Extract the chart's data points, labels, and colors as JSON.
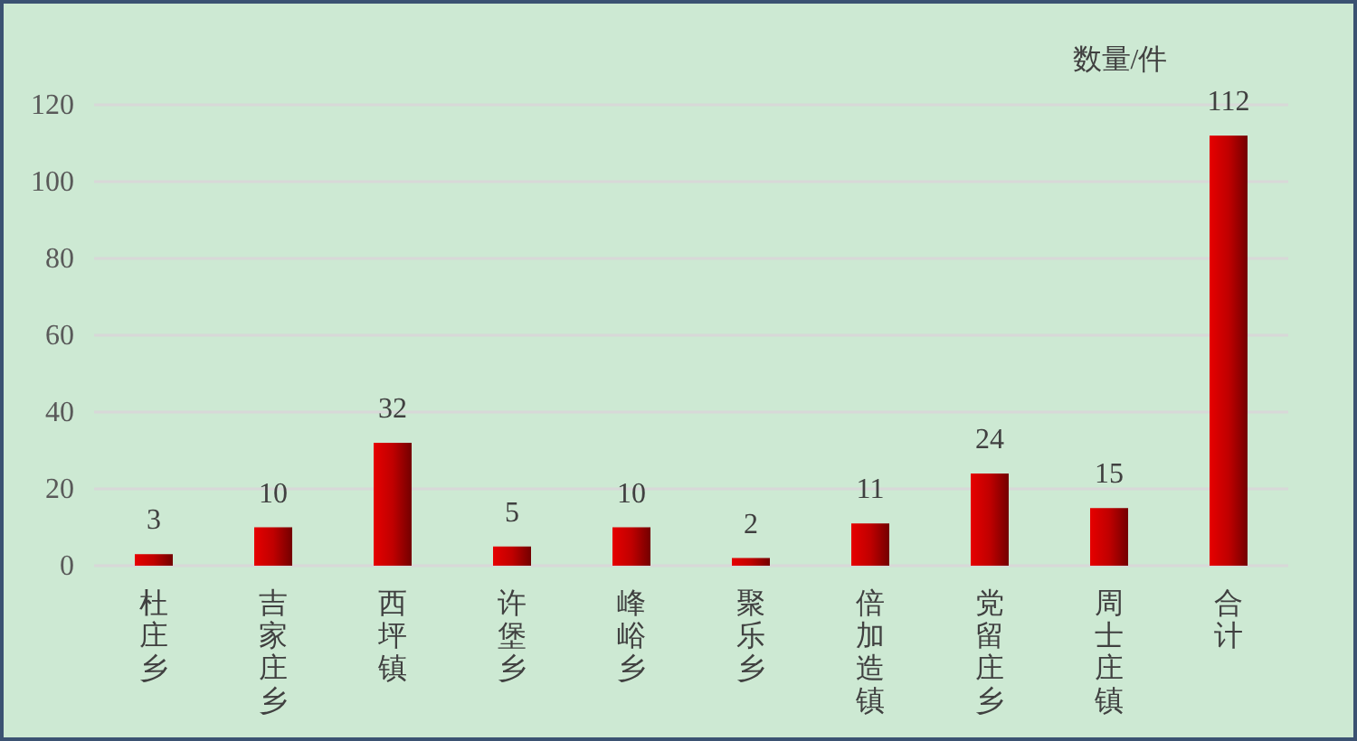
{
  "chart_data": {
    "type": "bar",
    "ylabel": "数量/件",
    "categories": [
      "杜庄乡",
      "吉家庄乡",
      "西坪镇",
      "许堡乡",
      "峰峪乡",
      "聚乐乡",
      "倍加造镇",
      "党留庄乡",
      "周士庄镇",
      "合计"
    ],
    "values": [
      3,
      10,
      32,
      5,
      10,
      2,
      11,
      24,
      15,
      112
    ],
    "color": "#c00000",
    "data_labels": true,
    "ylim": [
      0,
      120
    ],
    "yticks": [
      0,
      20,
      40,
      60,
      80,
      100,
      120
    ],
    "grid": "y"
  }
}
